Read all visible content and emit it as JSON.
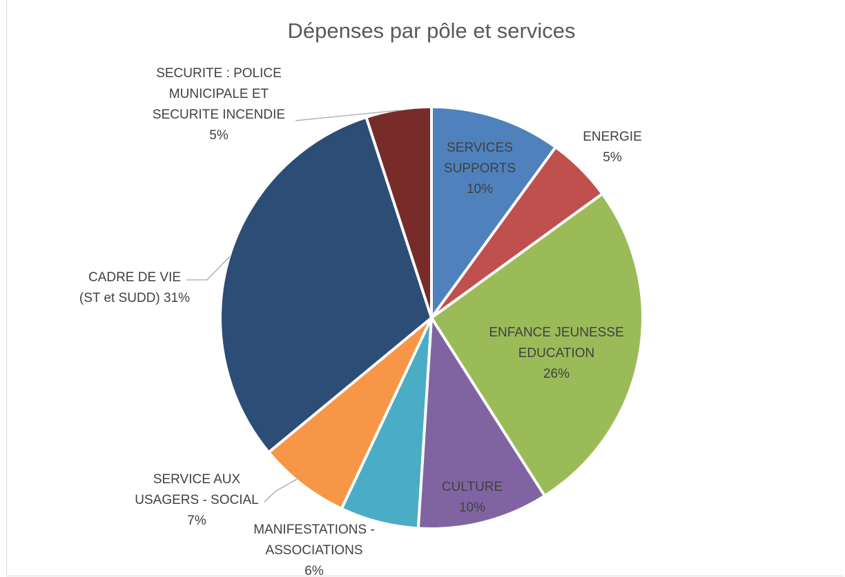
{
  "chart_data": {
    "type": "pie",
    "title": "Dépenses par pôle et services",
    "slices": [
      {
        "label": "SERVICES SUPPORTS",
        "percent": 10,
        "label_text": [
          "SERVICES",
          "SUPPORTS",
          "10%"
        ],
        "color": "#4f81bd"
      },
      {
        "label": "ENERGIE",
        "percent": 5,
        "label_text": [
          "ENERGIE",
          "5%"
        ],
        "color": "#c0504d"
      },
      {
        "label": "ENFANCE JEUNESSE EDUCATION",
        "percent": 26,
        "label_text": [
          "ENFANCE JEUNESSE",
          "EDUCATION",
          "26%"
        ],
        "color": "#9bbb59"
      },
      {
        "label": "CULTURE",
        "percent": 10,
        "label_text": [
          "CULTURE",
          "10%"
        ],
        "color": "#8064a2"
      },
      {
        "label": "MANIFESTATIONS - ASSOCIATIONS",
        "percent": 6,
        "label_text": [
          "MANIFESTATIONS -",
          "ASSOCIATIONS",
          "6%"
        ],
        "color": "#4bacc6"
      },
      {
        "label": "SERVICE AUX USAGERS - SOCIAL",
        "percent": 7,
        "label_text": [
          "SERVICE AUX",
          "USAGERS - SOCIAL",
          "7%"
        ],
        "color": "#f79646"
      },
      {
        "label": "CADRE DE VIE (ST et SUDD)",
        "percent": 31,
        "label_text": [
          "CADRE DE VIE",
          "(ST et SUDD) 31%"
        ],
        "color": "#2c4d75"
      },
      {
        "label": "SECURITE : POLICE MUNICIPALE ET SECURITE INCENDIE",
        "percent": 5,
        "label_text": [
          "SECURITE : POLICE",
          "MUNICIPALE ET",
          "SECURITE INCENDIE",
          "5%"
        ],
        "color": "#772c2a"
      }
    ],
    "start_angle_deg": 0,
    "direction": "clockwise",
    "legend": "none"
  }
}
